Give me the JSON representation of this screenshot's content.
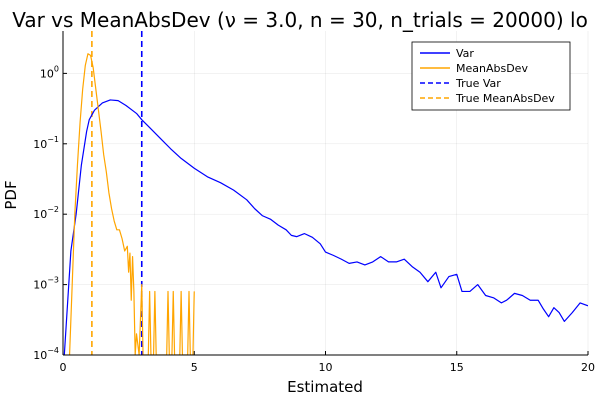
{
  "chart_data": {
    "type": "line",
    "title": "Var vs MeanAbsDev (ν = 3.0, n = 30, n_trials = 20000) lo",
    "xlabel": "Estimated",
    "ylabel": "PDF",
    "xlim": [
      0,
      20
    ],
    "ylim": [
      0.0001,
      4
    ],
    "yscale": "log",
    "grid": true,
    "legend_position": "top-right",
    "x_ticks": [
      {
        "value": 0,
        "label": "0"
      },
      {
        "value": 5,
        "label": "5"
      },
      {
        "value": 10,
        "label": "10"
      },
      {
        "value": 15,
        "label": "15"
      },
      {
        "value": 20,
        "label": "20"
      }
    ],
    "y_ticks": [
      {
        "value": 0.0001,
        "base": "10",
        "exp": "−4"
      },
      {
        "value": 0.001,
        "base": "10",
        "exp": "−3"
      },
      {
        "value": 0.01,
        "base": "10",
        "exp": "−2"
      },
      {
        "value": 0.1,
        "base": "10",
        "exp": "−1"
      },
      {
        "value": 1,
        "base": "10",
        "exp": "0"
      }
    ],
    "series": [
      {
        "name": "Var",
        "color": "#0000ff",
        "style": "solid",
        "points": [
          [
            0.05,
            0.0001
          ],
          [
            0.3,
            0.003
          ],
          [
            0.5,
            0.01
          ],
          [
            0.7,
            0.05
          ],
          [
            0.9,
            0.15
          ],
          [
            1.0,
            0.22
          ],
          [
            1.2,
            0.3
          ],
          [
            1.5,
            0.38
          ],
          [
            1.8,
            0.42
          ],
          [
            2.1,
            0.41
          ],
          [
            2.4,
            0.35
          ],
          [
            2.8,
            0.27
          ],
          [
            3.0,
            0.22
          ],
          [
            3.3,
            0.17
          ],
          [
            3.7,
            0.12
          ],
          [
            4.1,
            0.085
          ],
          [
            4.5,
            0.062
          ],
          [
            5.0,
            0.045
          ],
          [
            5.5,
            0.034
          ],
          [
            6.0,
            0.028
          ],
          [
            6.5,
            0.022
          ],
          [
            7.0,
            0.016
          ],
          [
            7.3,
            0.012
          ],
          [
            7.6,
            0.0095
          ],
          [
            7.9,
            0.0085
          ],
          [
            8.2,
            0.007
          ],
          [
            8.5,
            0.006
          ],
          [
            8.7,
            0.005
          ],
          [
            8.9,
            0.0048
          ],
          [
            9.2,
            0.0053
          ],
          [
            9.5,
            0.0047
          ],
          [
            9.8,
            0.0038
          ],
          [
            10.0,
            0.0029
          ],
          [
            10.3,
            0.0026
          ],
          [
            10.6,
            0.0023
          ],
          [
            10.9,
            0.002
          ],
          [
            11.2,
            0.0021
          ],
          [
            11.5,
            0.0019
          ],
          [
            11.8,
            0.0021
          ],
          [
            12.1,
            0.0025
          ],
          [
            12.4,
            0.0021
          ],
          [
            12.7,
            0.0021
          ],
          [
            13.0,
            0.0023
          ],
          [
            13.3,
            0.0018
          ],
          [
            13.6,
            0.0015
          ],
          [
            13.9,
            0.0011
          ],
          [
            14.2,
            0.0015
          ],
          [
            14.4,
            0.0009
          ],
          [
            14.7,
            0.0013
          ],
          [
            15.0,
            0.0014
          ],
          [
            15.2,
            0.0008
          ],
          [
            15.5,
            0.0008
          ],
          [
            15.8,
            0.001
          ],
          [
            16.1,
            0.0007
          ],
          [
            16.4,
            0.00065
          ],
          [
            16.7,
            0.00055
          ],
          [
            16.9,
            0.0006
          ],
          [
            17.2,
            0.00075
          ],
          [
            17.5,
            0.0007
          ],
          [
            17.8,
            0.0006
          ],
          [
            18.1,
            0.0006
          ],
          [
            18.3,
            0.00045
          ],
          [
            18.5,
            0.00035
          ],
          [
            18.7,
            0.00047
          ],
          [
            18.9,
            0.0004
          ],
          [
            19.1,
            0.0003
          ],
          [
            19.4,
            0.0004
          ],
          [
            19.7,
            0.00055
          ],
          [
            20.0,
            0.0005
          ]
        ]
      },
      {
        "name": "MeanAbsDev",
        "color": "#ffa500",
        "style": "solid",
        "points": [
          [
            0.25,
            0.0001
          ],
          [
            0.35,
            0.001
          ],
          [
            0.45,
            0.01
          ],
          [
            0.55,
            0.05
          ],
          [
            0.65,
            0.2
          ],
          [
            0.75,
            0.6
          ],
          [
            0.85,
            1.3
          ],
          [
            0.95,
            1.9
          ],
          [
            1.05,
            1.8
          ],
          [
            1.15,
            1.2
          ],
          [
            1.25,
            0.6
          ],
          [
            1.35,
            0.3
          ],
          [
            1.45,
            0.15
          ],
          [
            1.55,
            0.07
          ],
          [
            1.65,
            0.04
          ],
          [
            1.75,
            0.02
          ],
          [
            1.85,
            0.012
          ],
          [
            1.95,
            0.008
          ],
          [
            2.05,
            0.006
          ],
          [
            2.15,
            0.006
          ],
          [
            2.25,
            0.0045
          ],
          [
            2.35,
            0.003
          ],
          [
            2.45,
            0.0035
          ],
          [
            2.5,
            0.0015
          ],
          [
            2.55,
            0.0028
          ],
          [
            2.6,
            0.0006
          ],
          [
            2.65,
            0.0025
          ],
          [
            2.7,
            0.0008
          ],
          [
            2.75,
            0.0001
          ],
          [
            2.8,
            0.0002
          ],
          [
            2.9,
            0.0001
          ],
          [
            3.0,
            0.001
          ],
          [
            3.05,
            0.0001
          ],
          [
            3.25,
            0.0001
          ],
          [
            3.3,
            0.0008
          ],
          [
            3.35,
            0.0001
          ],
          [
            3.45,
            0.0001
          ],
          [
            3.5,
            0.0008
          ],
          [
            3.55,
            0.0001
          ],
          [
            3.95,
            0.0001
          ],
          [
            4.0,
            0.0008
          ],
          [
            4.05,
            0.0001
          ],
          [
            4.15,
            0.0001
          ],
          [
            4.2,
            0.0008
          ],
          [
            4.25,
            0.0001
          ],
          [
            4.45,
            0.0001
          ],
          [
            4.5,
            0.0008
          ],
          [
            4.55,
            0.0001
          ],
          [
            4.75,
            0.0001
          ],
          [
            4.8,
            0.0008
          ],
          [
            4.85,
            0.0001
          ],
          [
            4.95,
            0.0001
          ],
          [
            5.0,
            0.0008
          ]
        ]
      },
      {
        "name": "True Var",
        "color": "#0000ff",
        "style": "dashed",
        "vline": 3.0
      },
      {
        "name": "True MeanAbsDev",
        "color": "#ffa500",
        "style": "dashed",
        "vline": 1.1
      }
    ]
  }
}
